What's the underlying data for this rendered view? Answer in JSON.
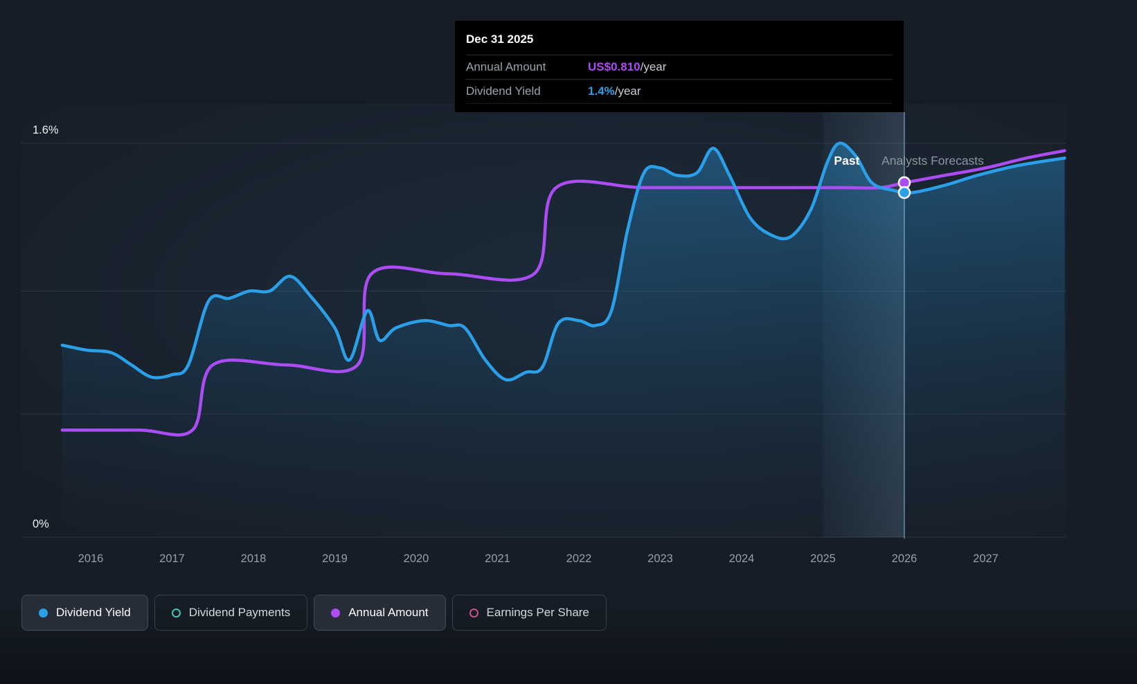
{
  "colors": {
    "background": "#171d26",
    "dividend_yield": "#2b9fe8",
    "annual_amount": "#ab4df2",
    "dividend_payments": "#43c6b7",
    "earnings_per_share": "#d1508f",
    "grid": "rgba(255,255,255,0.09)",
    "axis_text": "#96a0aa",
    "forecast_text": "#8d96a2"
  },
  "tooltip": {
    "date": "Dec 31 2025",
    "rows": [
      {
        "label": "Annual Amount",
        "value": "US$0.810",
        "suffix": "/year",
        "color": "#ab4df2"
      },
      {
        "label": "Dividend Yield",
        "value": "1.4%",
        "suffix": "/year",
        "color": "#2b9fe8"
      }
    ]
  },
  "chart_data": {
    "type": "line",
    "title": "",
    "ylabel": "Dividend Yield",
    "y_unit": "%",
    "ylim": [
      0,
      1.6
    ],
    "grid_values": [
      1.6,
      1.0,
      0.5,
      0
    ],
    "y_ticks": [
      {
        "value": 1.6,
        "label": "1.6%"
      },
      {
        "value": 0,
        "label": "0%"
      }
    ],
    "x_ticks": [
      {
        "year": 2016,
        "label": "2016"
      },
      {
        "year": 2017,
        "label": "2017"
      },
      {
        "year": 2018,
        "label": "2018"
      },
      {
        "year": 2019,
        "label": "2019"
      },
      {
        "year": 2020,
        "label": "2020"
      },
      {
        "year": 2021,
        "label": "2021"
      },
      {
        "year": 2022,
        "label": "2022"
      },
      {
        "year": 2023,
        "label": "2023"
      },
      {
        "year": 2024,
        "label": "2024"
      },
      {
        "year": 2025,
        "label": "2025"
      },
      {
        "year": 2026,
        "label": "2026"
      },
      {
        "year": 2027,
        "label": "2027"
      }
    ],
    "x_range": [
      2015.65,
      2027.97
    ],
    "annotations": {
      "past_label": "Past",
      "forecast_label": "Analysts Forecasts",
      "highlight_band": [
        2025.0,
        2026.0
      ],
      "marker_line_x": 2026.0,
      "markers": [
        {
          "series": "Annual Amount",
          "x": 2026.0,
          "y": 1.44
        },
        {
          "series": "Dividend Yield",
          "x": 2026.0,
          "y": 1.4
        }
      ]
    },
    "series": [
      {
        "name": "Dividend Yield",
        "color": "#2b9fe8",
        "style": "area",
        "points": [
          [
            2015.65,
            0.78
          ],
          [
            2015.95,
            0.76
          ],
          [
            2016.25,
            0.75
          ],
          [
            2016.5,
            0.7
          ],
          [
            2016.75,
            0.65
          ],
          [
            2017.0,
            0.66
          ],
          [
            2017.2,
            0.7
          ],
          [
            2017.45,
            0.96
          ],
          [
            2017.7,
            0.97
          ],
          [
            2017.95,
            1.0
          ],
          [
            2018.2,
            1.0
          ],
          [
            2018.45,
            1.06
          ],
          [
            2018.7,
            0.98
          ],
          [
            2019.0,
            0.85
          ],
          [
            2019.18,
            0.72
          ],
          [
            2019.4,
            0.92
          ],
          [
            2019.55,
            0.8
          ],
          [
            2019.75,
            0.85
          ],
          [
            2020.1,
            0.88
          ],
          [
            2020.4,
            0.86
          ],
          [
            2020.6,
            0.85
          ],
          [
            2020.85,
            0.72
          ],
          [
            2021.1,
            0.64
          ],
          [
            2021.35,
            0.67
          ],
          [
            2021.55,
            0.69
          ],
          [
            2021.75,
            0.87
          ],
          [
            2022.0,
            0.88
          ],
          [
            2022.2,
            0.86
          ],
          [
            2022.4,
            0.92
          ],
          [
            2022.6,
            1.25
          ],
          [
            2022.8,
            1.48
          ],
          [
            2023.0,
            1.5
          ],
          [
            2023.2,
            1.47
          ],
          [
            2023.45,
            1.48
          ],
          [
            2023.65,
            1.58
          ],
          [
            2023.85,
            1.47
          ],
          [
            2024.1,
            1.3
          ],
          [
            2024.35,
            1.23
          ],
          [
            2024.6,
            1.22
          ],
          [
            2024.85,
            1.33
          ],
          [
            2025.05,
            1.52
          ],
          [
            2025.2,
            1.6
          ],
          [
            2025.4,
            1.55
          ],
          [
            2025.6,
            1.44
          ],
          [
            2025.85,
            1.41
          ],
          [
            2026.1,
            1.4
          ],
          [
            2026.5,
            1.43
          ],
          [
            2026.9,
            1.47
          ],
          [
            2027.4,
            1.51
          ],
          [
            2027.97,
            1.54
          ]
        ]
      },
      {
        "name": "Annual Amount",
        "color": "#ab4df2",
        "style": "line",
        "points": [
          [
            2015.65,
            0.435
          ],
          [
            2016.6,
            0.435
          ],
          [
            2017.25,
            0.435
          ],
          [
            2017.5,
            0.7
          ],
          [
            2018.4,
            0.7
          ],
          [
            2019.28,
            0.7
          ],
          [
            2019.45,
            1.07
          ],
          [
            2020.4,
            1.07
          ],
          [
            2021.45,
            1.07
          ],
          [
            2021.72,
            1.42
          ],
          [
            2022.8,
            1.42
          ],
          [
            2024.0,
            1.42
          ],
          [
            2025.2,
            1.42
          ],
          [
            2025.7,
            1.42
          ],
          [
            2026.0,
            1.44
          ],
          [
            2026.5,
            1.47
          ],
          [
            2027.0,
            1.5
          ],
          [
            2027.5,
            1.54
          ],
          [
            2027.97,
            1.57
          ]
        ]
      }
    ]
  },
  "legend": [
    {
      "label": "Dividend Yield",
      "marker": "filled",
      "color": "#2b9fe8",
      "active": true
    },
    {
      "label": "Dividend Payments",
      "marker": "outline",
      "color": "#43c6b7",
      "active": false
    },
    {
      "label": "Annual Amount",
      "marker": "filled",
      "color": "#ab4df2",
      "active": true
    },
    {
      "label": "Earnings Per Share",
      "marker": "outline",
      "color": "#d1508f",
      "active": false
    }
  ]
}
